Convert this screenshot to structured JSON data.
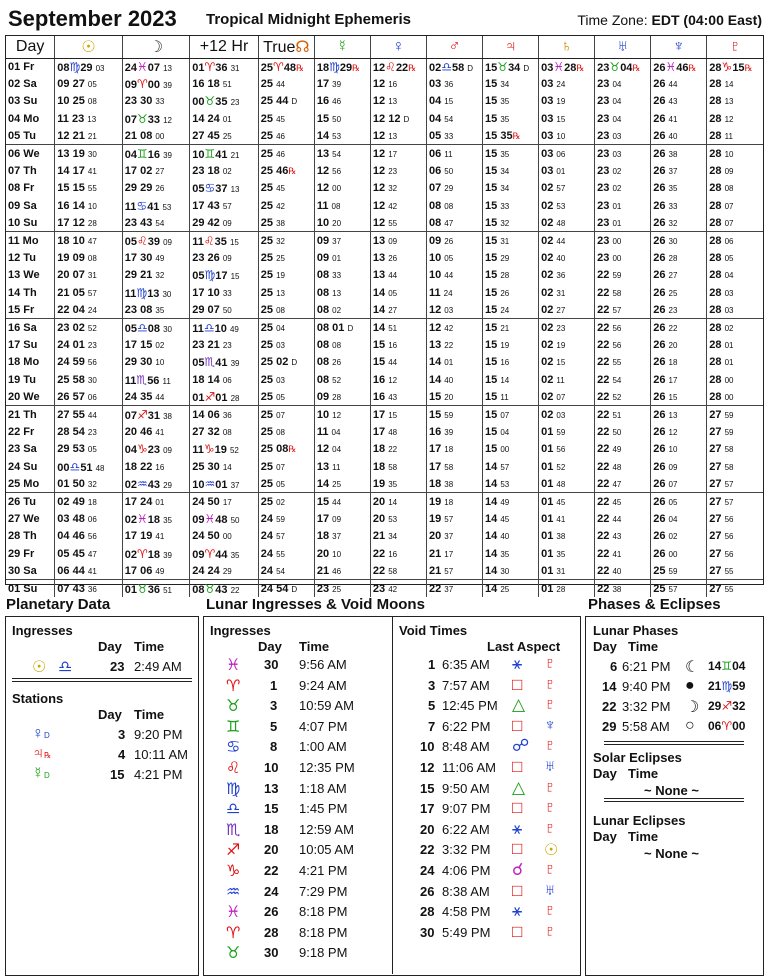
{
  "header": {
    "month": "September 2023",
    "subtitle": "Tropical Midnight Ephemeris",
    "tz_label": "Time Zone:",
    "tz_value": "EDT",
    "tz_offset": "(04:00 East)"
  },
  "columns": [
    {
      "label": "Day",
      "glyph": ""
    },
    {
      "label": "",
      "glyph": "☉",
      "color": "#c9a800"
    },
    {
      "label": "",
      "glyph": "☽",
      "color": "#333333"
    },
    {
      "label": "+12 Hr",
      "glyph": ""
    },
    {
      "label": "True",
      "glyph": "☊",
      "color": "#d45a00"
    },
    {
      "label": "",
      "glyph": "☿",
      "color": "#1aa01a"
    },
    {
      "label": "",
      "glyph": "♀",
      "color": "#2040d0"
    },
    {
      "label": "",
      "glyph": "♂",
      "color": "#e01010"
    },
    {
      "label": "",
      "glyph": "♃",
      "color": "#e01010"
    },
    {
      "label": "",
      "glyph": "♄",
      "color": "#c98a00"
    },
    {
      "label": "",
      "glyph": "♅",
      "color": "#2040d0"
    },
    {
      "label": "",
      "glyph": "♆",
      "color": "#2040d0"
    },
    {
      "label": "",
      "glyph": "♇",
      "color": "#e01010"
    }
  ],
  "rows": [
    [
      "01 Fr",
      "08♍29 03",
      "24♓07 13",
      "01♈36 31",
      "25♈48℞",
      "18♍29℞",
      "12♌22℞",
      "02♎58 D",
      "15♉34 D",
      "03♓28℞",
      "23♉04℞",
      "26♓46℞",
      "28♑15℞"
    ],
    [
      "02 Sa",
      "09 27 05",
      "09♈00 39",
      "16 18 51",
      "25 44",
      "17 39",
      "12 16",
      "03 36",
      "15 34",
      "03 24",
      "23 04",
      "26 44",
      "28 14"
    ],
    [
      "03 Su",
      "10 25 08",
      "23 30 33",
      "00♉35 23",
      "25 44 D",
      "16 46",
      "12 13",
      "04 15",
      "15 35",
      "03 19",
      "23 04",
      "26 43",
      "28 13"
    ],
    [
      "04 Mo",
      "11 23 13",
      "07♉33 12",
      "14 24 01",
      "25 45",
      "15 50",
      "12 12 D",
      "04 54",
      "15 35",
      "03 15",
      "23 04",
      "26 41",
      "28 12"
    ],
    [
      "05 Tu",
      "12 21 21",
      "21 08 00",
      "27 45 25",
      "25 46",
      "14 53",
      "12 13",
      "05 33",
      "15 35℞",
      "03 10",
      "23 03",
      "26 40",
      "28 11"
    ],
    [
      "06 We",
      "13 19 30",
      "04♊16 39",
      "10♊41 21",
      "25 46",
      "13 54",
      "12 17",
      "06 11",
      "15 35",
      "03 06",
      "23 03",
      "26 38",
      "28 10"
    ],
    [
      "07 Th",
      "14 17 41",
      "17 02 27",
      "23 18 02",
      "25 46℞",
      "12 56",
      "12 23",
      "06 50",
      "15 34",
      "03 01",
      "23 02",
      "26 37",
      "28 09"
    ],
    [
      "08 Fr",
      "15 15 55",
      "29 29 26",
      "05♋37 13",
      "25 45",
      "12 00",
      "12 32",
      "07 29",
      "15 34",
      "02 57",
      "23 02",
      "26 35",
      "28 08"
    ],
    [
      "09 Sa",
      "16 14 10",
      "11♋41 53",
      "17 43 57",
      "25 42",
      "11 08",
      "12 42",
      "08 08",
      "15 33",
      "02 53",
      "23 01",
      "26 33",
      "28 07"
    ],
    [
      "10 Su",
      "17 12 28",
      "23 43 54",
      "29 42 09",
      "25 38",
      "10 20",
      "12 55",
      "08 47",
      "15 32",
      "02 48",
      "23 01",
      "26 32",
      "28 07"
    ],
    [
      "11 Mo",
      "18 10 47",
      "05♌39 09",
      "11♌35 15",
      "25 32",
      "09 37",
      "13 09",
      "09 26",
      "15 31",
      "02 44",
      "23 00",
      "26 30",
      "28 06"
    ],
    [
      "12 Tu",
      "19 09 08",
      "17 30 49",
      "23 26 09",
      "25 25",
      "09 01",
      "13 26",
      "10 05",
      "15 29",
      "02 40",
      "23 00",
      "26 28",
      "28 05"
    ],
    [
      "13 We",
      "20 07 31",
      "29 21 32",
      "05♍17 15",
      "25 19",
      "08 33",
      "13 44",
      "10 44",
      "15 28",
      "02 36",
      "22 59",
      "26 27",
      "28 04"
    ],
    [
      "14 Th",
      "21 05 57",
      "11♍13 30",
      "17 10 33",
      "25 13",
      "08 13",
      "14 05",
      "11 24",
      "15 26",
      "02 31",
      "22 58",
      "26 25",
      "28 03"
    ],
    [
      "15 Fr",
      "22 04 24",
      "23 08 35",
      "29 07 50",
      "25 08",
      "08 02",
      "14 27",
      "12 03",
      "15 24",
      "02 27",
      "22 57",
      "26 23",
      "28 03"
    ],
    [
      "16 Sa",
      "23 02 52",
      "05♎08 30",
      "11♎10 49",
      "25 04",
      "08 01 D",
      "14 51",
      "12 42",
      "15 21",
      "02 23",
      "22 56",
      "26 22",
      "28 02"
    ],
    [
      "17 Su",
      "24 01 23",
      "17 15 02",
      "23 21 23",
      "25 03",
      "08 08",
      "15 16",
      "13 22",
      "15 19",
      "02 19",
      "22 56",
      "26 20",
      "28 01"
    ],
    [
      "18 Mo",
      "24 59 56",
      "29 30 10",
      "05♏41 39",
      "25 02 D",
      "08 26",
      "15 44",
      "14 01",
      "15 16",
      "02 15",
      "22 55",
      "26 18",
      "28 01"
    ],
    [
      "19 Tu",
      "25 58 30",
      "11♏56 11",
      "18 14 06",
      "25 03",
      "08 52",
      "16 12",
      "14 40",
      "15 14",
      "02 11",
      "22 54",
      "26 17",
      "28 00"
    ],
    [
      "20 We",
      "26 57 06",
      "24 35 44",
      "01♐01 28",
      "25 05",
      "09 28",
      "16 43",
      "15 20",
      "15 11",
      "02 07",
      "22 52",
      "26 15",
      "28 00"
    ],
    [
      "21 Th",
      "27 55 44",
      "07♐31 38",
      "14 06 36",
      "25 07",
      "10 12",
      "17 15",
      "15 59",
      "15 07",
      "02 03",
      "22 51",
      "26 13",
      "27 59"
    ],
    [
      "22 Fr",
      "28 54 23",
      "20 46 41",
      "27 32 08",
      "25 08",
      "11 04",
      "17 48",
      "16 39",
      "15 04",
      "01 59",
      "22 50",
      "26 12",
      "27 59"
    ],
    [
      "23 Sa",
      "29 53 05",
      "04♑23 09",
      "11♑19 52",
      "25 08℞",
      "12 04",
      "18 22",
      "17 18",
      "15 00",
      "01 56",
      "22 49",
      "26 10",
      "27 58"
    ],
    [
      "24 Su",
      "00♎51 48",
      "18 22 16",
      "25 30 14",
      "25 07",
      "13 11",
      "18 58",
      "17 58",
      "14 57",
      "01 52",
      "22 48",
      "26 09",
      "27 58"
    ],
    [
      "25 Mo",
      "01 50 32",
      "02♒43 29",
      "10♒01 37",
      "25 05",
      "14 25",
      "19 35",
      "18 38",
      "14 53",
      "01 48",
      "22 47",
      "26 07",
      "27 57"
    ],
    [
      "26 Tu",
      "02 49 18",
      "17 24 01",
      "24 50 17",
      "25 02",
      "15 44",
      "20 14",
      "19 18",
      "14 49",
      "01 45",
      "22 45",
      "26 05",
      "27 57"
    ],
    [
      "27 We",
      "03 48 06",
      "02♓18 35",
      "09♓48 50",
      "24 59",
      "17 09",
      "20 53",
      "19 57",
      "14 45",
      "01 41",
      "22 44",
      "26 04",
      "27 56"
    ],
    [
      "28 Th",
      "04 46 56",
      "17 19 41",
      "24 50 00",
      "24 57",
      "18 37",
      "21 34",
      "20 37",
      "14 40",
      "01 38",
      "22 43",
      "26 02",
      "27 56"
    ],
    [
      "29 Fr",
      "05 45 47",
      "02♈18 39",
      "09♈44 35",
      "24 55",
      "20 10",
      "22 16",
      "21 17",
      "14 35",
      "01 35",
      "22 41",
      "26 00",
      "27 56"
    ],
    [
      "30 Sa",
      "06 44 41",
      "17 06 49",
      "24 24 29",
      "24 54",
      "21 46",
      "22 58",
      "21 57",
      "14 30",
      "01 31",
      "22 40",
      "25 59",
      "27 55"
    ],
    [
      "01 Su",
      "07 43 36",
      "01♉36 51",
      "08♉43 22",
      "24 54 D",
      "23 25",
      "23 42",
      "22 37",
      "14 25",
      "01 28",
      "22 38",
      "25 57",
      "27 55"
    ]
  ],
  "planetary": {
    "title": "Planetary Data",
    "ingresses_label": "Ingresses",
    "day_label": "Day",
    "time_label": "Time",
    "ingress": {
      "planet": "☉",
      "sign": "♎",
      "day": "23",
      "time": "2:49 AM"
    },
    "stations_label": "Stations",
    "stations": [
      {
        "planet": "♀",
        "tag": "D",
        "day": "3",
        "time": "9:20 PM",
        "color": "#2040d0"
      },
      {
        "planet": "♃",
        "tag": "℞",
        "day": "4",
        "time": "10:11 AM",
        "color": "#e01010"
      },
      {
        "planet": "☿",
        "tag": "D",
        "day": "15",
        "time": "4:21 PM",
        "color": "#1aa01a"
      }
    ]
  },
  "lunar": {
    "title": "Lunar Ingresses & Void Moons",
    "ingresses_label": "Ingresses",
    "day_label": "Day",
    "time_label": "Time",
    "ingresses": [
      {
        "sign": "♓",
        "color": "#c020c0",
        "day": "30",
        "time": "9:56 AM"
      },
      {
        "sign": "♈",
        "color": "#e01010",
        "day": "1",
        "time": "9:24 AM"
      },
      {
        "sign": "♉",
        "color": "#1aa01a",
        "day": "3",
        "time": "10:59 AM"
      },
      {
        "sign": "♊",
        "color": "#1aa01a",
        "day": "5",
        "time": "4:07 PM"
      },
      {
        "sign": "♋",
        "color": "#2040d0",
        "day": "8",
        "time": "1:00 AM"
      },
      {
        "sign": "♌",
        "color": "#e01010",
        "day": "10",
        "time": "12:35 PM"
      },
      {
        "sign": "♍",
        "color": "#2040d0",
        "day": "13",
        "time": "1:18 AM"
      },
      {
        "sign": "♎",
        "color": "#2040d0",
        "day": "15",
        "time": "1:45 PM"
      },
      {
        "sign": "♏",
        "color": "#7030c0",
        "day": "18",
        "time": "12:59 AM"
      },
      {
        "sign": "♐",
        "color": "#e01010",
        "day": "20",
        "time": "10:05 AM"
      },
      {
        "sign": "♑",
        "color": "#e01010",
        "day": "22",
        "time": "4:21 PM"
      },
      {
        "sign": "♒",
        "color": "#2040d0",
        "day": "24",
        "time": "7:29 PM"
      },
      {
        "sign": "♓",
        "color": "#c020c0",
        "day": "26",
        "time": "8:18 PM"
      },
      {
        "sign": "♈",
        "color": "#e01010",
        "day": "28",
        "time": "8:18 PM"
      },
      {
        "sign": "♉",
        "color": "#1aa01a",
        "day": "30",
        "time": "9:18 PM"
      }
    ],
    "void_label": "Void Times",
    "last_aspect_label": "Last Aspect",
    "voids": [
      {
        "day": "1",
        "time": "6:35 AM",
        "asp": "⚹",
        "acol": "#2040d0",
        "pl": "♇",
        "pcol": "#e01010"
      },
      {
        "day": "3",
        "time": "7:57 AM",
        "asp": "□",
        "acol": "#e01010",
        "pl": "♇",
        "pcol": "#e01010"
      },
      {
        "day": "5",
        "time": "12:45 PM",
        "asp": "△",
        "acol": "#1aa01a",
        "pl": "♇",
        "pcol": "#e01010"
      },
      {
        "day": "7",
        "time": "6:22 PM",
        "asp": "□",
        "acol": "#e01010",
        "pl": "♆",
        "pcol": "#2040d0"
      },
      {
        "day": "10",
        "time": "8:48 AM",
        "asp": "☍",
        "acol": "#2040d0",
        "pl": "♇",
        "pcol": "#e01010"
      },
      {
        "day": "12",
        "time": "11:06 AM",
        "asp": "□",
        "acol": "#e01010",
        "pl": "♅",
        "pcol": "#2040d0"
      },
      {
        "day": "15",
        "time": "9:50 AM",
        "asp": "△",
        "acol": "#1aa01a",
        "pl": "♇",
        "pcol": "#e01010"
      },
      {
        "day": "17",
        "time": "9:07 PM",
        "asp": "□",
        "acol": "#e01010",
        "pl": "♇",
        "pcol": "#e01010"
      },
      {
        "day": "20",
        "time": "6:22 AM",
        "asp": "⚹",
        "acol": "#2040d0",
        "pl": "♇",
        "pcol": "#e01010"
      },
      {
        "day": "22",
        "time": "3:32 PM",
        "asp": "□",
        "acol": "#e01010",
        "pl": "☉",
        "pcol": "#c9a800"
      },
      {
        "day": "24",
        "time": "4:06 PM",
        "asp": "☌",
        "acol": "#c020c0",
        "pl": "♇",
        "pcol": "#e01010"
      },
      {
        "day": "26",
        "time": "8:38 AM",
        "asp": "□",
        "acol": "#e01010",
        "pl": "♅",
        "pcol": "#2040d0"
      },
      {
        "day": "28",
        "time": "4:58 PM",
        "asp": "⚹",
        "acol": "#2040d0",
        "pl": "♇",
        "pcol": "#e01010"
      },
      {
        "day": "30",
        "time": "5:49 PM",
        "asp": "□",
        "acol": "#e01010",
        "pl": "♇",
        "pcol": "#e01010"
      }
    ]
  },
  "phases": {
    "title": "Phases & Eclipses",
    "lunar_label": "Lunar Phases",
    "day_label": "Day",
    "time_label": "Time",
    "list": [
      {
        "day": "6",
        "time": "6:21 PM",
        "glyph": "☾",
        "deg": "14",
        "sign": "♊",
        "min": "04",
        "scol": "#1aa01a"
      },
      {
        "day": "14",
        "time": "9:40 PM",
        "glyph": "●",
        "deg": "21",
        "sign": "♍",
        "min": "59",
        "scol": "#2040d0"
      },
      {
        "day": "22",
        "time": "3:32 PM",
        "glyph": "☽",
        "deg": "29",
        "sign": "♐",
        "min": "32",
        "scol": "#e01010"
      },
      {
        "day": "29",
        "time": "5:58 AM",
        "glyph": "○",
        "deg": "06",
        "sign": "♈",
        "min": "00",
        "scol": "#e01010"
      }
    ],
    "solar_label": "Solar Eclipses",
    "solar_none": "~ None ~",
    "lunar_ecl_label": "Lunar Eclipses",
    "lunar_none": "~ None ~"
  }
}
